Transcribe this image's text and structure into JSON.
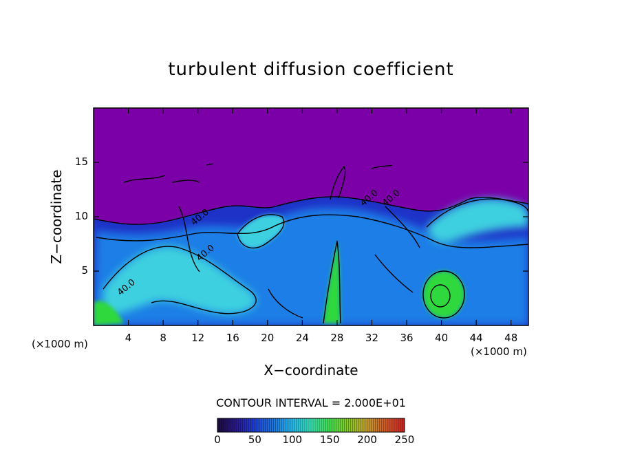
{
  "chart_data": {
    "type": "heatmap",
    "title": "turbulent diffusion coefficient",
    "xlabel": "X−coordinate",
    "ylabel": "Z−coordinate",
    "x_unit_left": "(×1000 m)",
    "x_unit_right": "(×1000 m)",
    "xlim": [
      0,
      50
    ],
    "ylim": [
      0,
      20
    ],
    "x_ticks": [
      "4",
      "8",
      "12",
      "16",
      "20",
      "24",
      "28",
      "32",
      "36",
      "40",
      "44",
      "48"
    ],
    "y_ticks": [
      "5",
      "10",
      "15"
    ],
    "contour_interval_label": "CONTOUR INTERVAL = 2.000E+01",
    "contour_interval": 20,
    "contour_labels": [
      "40.0",
      "40.0",
      "40.0",
      "40.0",
      "40.0"
    ],
    "colorbar": {
      "min": 0,
      "max": 250,
      "ticks": [
        "0",
        "50",
        "100",
        "150",
        "200",
        "250"
      ],
      "colors": [
        "#1a0a3a",
        "#2a1a8c",
        "#1f3fd0",
        "#1d78e0",
        "#23b4e8",
        "#3ee3b5",
        "#3ddc4a",
        "#8acb2a",
        "#bf9a2a",
        "#d45a2a",
        "#c92222"
      ]
    },
    "field_colors": {
      "background": "#7b00a8",
      "low": "#1e32c8",
      "mid": "#1e7ee6",
      "high": "#3cd0e0",
      "peak": "#2fd83c"
    },
    "grid": false
  }
}
